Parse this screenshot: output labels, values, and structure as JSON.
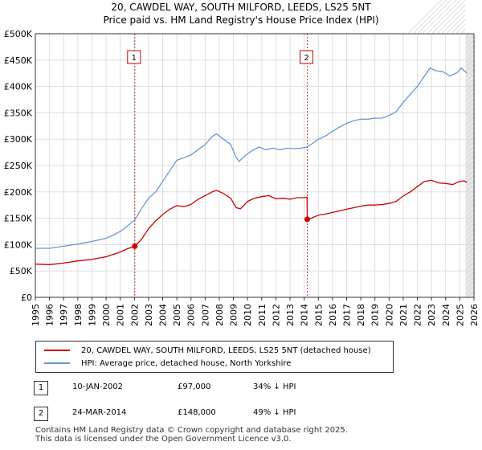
{
  "chart_data": {
    "type": "line",
    "title": "20, CAWDEL WAY, SOUTH MILFORD, LEEDS, LS25 5NT",
    "subtitle": "Price paid vs. HM Land Registry's House Price Index (HPI)",
    "xlabel": "",
    "ylabel": "",
    "xlim": [
      1995,
      2026
    ],
    "ylim": [
      0,
      500000
    ],
    "grid": true,
    "y_ticks": [
      {
        "value": 0,
        "label": "£0"
      },
      {
        "value": 50000,
        "label": "£50K"
      },
      {
        "value": 100000,
        "label": "£100K"
      },
      {
        "value": 150000,
        "label": "£150K"
      },
      {
        "value": 200000,
        "label": "£200K"
      },
      {
        "value": 250000,
        "label": "£250K"
      },
      {
        "value": 300000,
        "label": "£300K"
      },
      {
        "value": 350000,
        "label": "£350K"
      },
      {
        "value": 400000,
        "label": "£400K"
      },
      {
        "value": 450000,
        "label": "£450K"
      },
      {
        "value": 500000,
        "label": "£500K"
      }
    ],
    "x_ticks": [
      "1995",
      "1996",
      "1997",
      "1998",
      "1999",
      "2000",
      "2001",
      "2002",
      "2003",
      "2004",
      "2005",
      "2006",
      "2007",
      "2008",
      "2009",
      "2010",
      "2011",
      "2012",
      "2013",
      "2014",
      "2015",
      "2016",
      "2017",
      "2018",
      "2019",
      "2020",
      "2021",
      "2022",
      "2023",
      "2024",
      "2025",
      "2026"
    ],
    "series": [
      {
        "name": "20, CAWDEL WAY, SOUTH MILFORD, LEEDS, LS25 5NT (detached house)",
        "color": "#cc0000",
        "points": [
          [
            1995.0,
            63000
          ],
          [
            1996.0,
            62000
          ],
          [
            1997.0,
            65000
          ],
          [
            1998.0,
            69000
          ],
          [
            1999.0,
            72000
          ],
          [
            2000.0,
            77000
          ],
          [
            2001.0,
            86000
          ],
          [
            2001.5,
            92000
          ],
          [
            2002.03,
            97000
          ],
          [
            2002.5,
            110000
          ],
          [
            2003.0,
            130000
          ],
          [
            2003.5,
            145000
          ],
          [
            2004.0,
            157000
          ],
          [
            2004.5,
            167000
          ],
          [
            2005.0,
            174000
          ],
          [
            2005.5,
            172000
          ],
          [
            2006.0,
            176000
          ],
          [
            2006.5,
            186000
          ],
          [
            2007.0,
            193000
          ],
          [
            2007.5,
            200000
          ],
          [
            2007.8,
            203000
          ],
          [
            2008.3,
            197000
          ],
          [
            2008.8,
            188000
          ],
          [
            2009.2,
            170000
          ],
          [
            2009.5,
            168000
          ],
          [
            2010.0,
            182000
          ],
          [
            2010.5,
            188000
          ],
          [
            2011.0,
            191000
          ],
          [
            2011.5,
            193000
          ],
          [
            2012.0,
            187000
          ],
          [
            2012.5,
            188000
          ],
          [
            2013.0,
            186000
          ],
          [
            2013.5,
            189000
          ],
          [
            2014.0,
            189000
          ],
          [
            2014.2,
            190000
          ],
          [
            2014.22,
            148000
          ],
          [
            2014.5,
            150000
          ],
          [
            2015.0,
            156000
          ],
          [
            2015.5,
            158000
          ],
          [
            2016.0,
            161000
          ],
          [
            2016.5,
            164000
          ],
          [
            2017.0,
            167000
          ],
          [
            2017.5,
            170000
          ],
          [
            2018.0,
            173000
          ],
          [
            2018.5,
            175000
          ],
          [
            2019.0,
            175000
          ],
          [
            2019.5,
            176000
          ],
          [
            2020.0,
            178000
          ],
          [
            2020.5,
            182000
          ],
          [
            2021.0,
            192000
          ],
          [
            2021.5,
            200000
          ],
          [
            2022.0,
            210000
          ],
          [
            2022.5,
            220000
          ],
          [
            2023.0,
            222000
          ],
          [
            2023.5,
            217000
          ],
          [
            2024.0,
            216000
          ],
          [
            2024.5,
            214000
          ],
          [
            2025.0,
            220000
          ],
          [
            2025.3,
            221000
          ],
          [
            2025.5,
            218000
          ]
        ]
      },
      {
        "name": "HPI: Average price, detached house, North Yorkshire",
        "color": "#6a97d0",
        "points": [
          [
            1995.0,
            93000
          ],
          [
            1996.0,
            93000
          ],
          [
            1997.0,
            97000
          ],
          [
            1998.0,
            101000
          ],
          [
            1999.0,
            106000
          ],
          [
            2000.0,
            112000
          ],
          [
            2000.5,
            118000
          ],
          [
            2001.0,
            125000
          ],
          [
            2001.5,
            135000
          ],
          [
            2002.0,
            146000
          ],
          [
            2002.5,
            168000
          ],
          [
            2003.0,
            188000
          ],
          [
            2003.5,
            200000
          ],
          [
            2004.0,
            220000
          ],
          [
            2004.5,
            240000
          ],
          [
            2005.0,
            260000
          ],
          [
            2005.5,
            265000
          ],
          [
            2006.0,
            270000
          ],
          [
            2006.5,
            280000
          ],
          [
            2007.0,
            290000
          ],
          [
            2007.5,
            305000
          ],
          [
            2007.8,
            310000
          ],
          [
            2008.3,
            300000
          ],
          [
            2008.8,
            290000
          ],
          [
            2009.2,
            265000
          ],
          [
            2009.4,
            258000
          ],
          [
            2009.8,
            268000
          ],
          [
            2010.3,
            278000
          ],
          [
            2010.8,
            285000
          ],
          [
            2011.3,
            280000
          ],
          [
            2011.8,
            283000
          ],
          [
            2012.3,
            280000
          ],
          [
            2012.8,
            283000
          ],
          [
            2013.3,
            282000
          ],
          [
            2013.8,
            283000
          ],
          [
            2014.2,
            285000
          ],
          [
            2014.6,
            292000
          ],
          [
            2015.0,
            300000
          ],
          [
            2015.5,
            306000
          ],
          [
            2016.0,
            315000
          ],
          [
            2016.5,
            323000
          ],
          [
            2017.0,
            330000
          ],
          [
            2017.5,
            335000
          ],
          [
            2018.0,
            338000
          ],
          [
            2018.5,
            338000
          ],
          [
            2019.0,
            340000
          ],
          [
            2019.5,
            340000
          ],
          [
            2020.0,
            345000
          ],
          [
            2020.5,
            352000
          ],
          [
            2021.0,
            370000
          ],
          [
            2021.5,
            385000
          ],
          [
            2022.0,
            400000
          ],
          [
            2022.5,
            420000
          ],
          [
            2022.9,
            435000
          ],
          [
            2023.3,
            430000
          ],
          [
            2023.8,
            428000
          ],
          [
            2024.3,
            420000
          ],
          [
            2024.8,
            426000
          ],
          [
            2025.1,
            435000
          ],
          [
            2025.3,
            430000
          ],
          [
            2025.5,
            425000
          ]
        ]
      }
    ],
    "annotations": [
      {
        "label": "1",
        "x": 2002.03,
        "y": 97000
      },
      {
        "label": "2",
        "x": 2014.22,
        "y": 148000
      }
    ],
    "shaded_after": 2025.4
  },
  "legend": {
    "price_paid": "20, CAWDEL WAY, SOUTH MILFORD, LEEDS, LS25 5NT (detached house)",
    "hpi": "HPI: Average price, detached house, North Yorkshire"
  },
  "transactions": [
    {
      "num": "1",
      "date": "10-JAN-2002",
      "price": "£97,000",
      "hpi": "34% ↓ HPI"
    },
    {
      "num": "2",
      "date": "24-MAR-2014",
      "price": "£148,000",
      "hpi": "49% ↓ HPI"
    }
  ],
  "footer": {
    "line1": "Contains HM Land Registry data © Crown copyright and database right 2025.",
    "line2": "This data is licensed under the Open Government Licence v3.0."
  },
  "colors": {
    "red": "#cc0000",
    "blue": "#6a97d0",
    "grid": "#dddddd",
    "plot_bg": "#ffffff"
  }
}
